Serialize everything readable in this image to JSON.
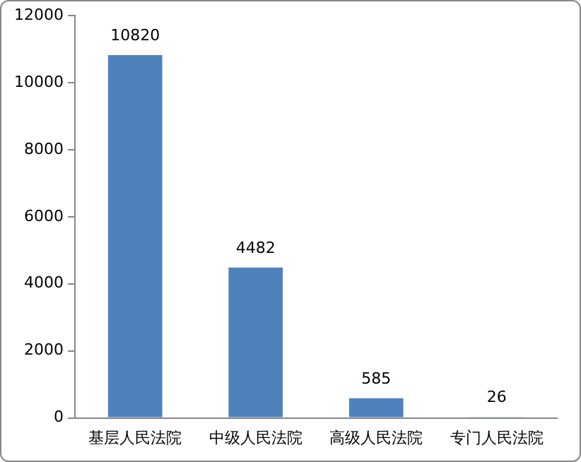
{
  "chart_data": {
    "type": "bar",
    "categories": [
      "基层人民法院",
      "中级人民法院",
      "高级人民法院",
      "专门人民法院"
    ],
    "values": [
      10820,
      4482,
      585,
      26
    ],
    "color": "#4f81bd",
    "ylim": [
      0,
      12000
    ],
    "yticks": [
      0,
      2000,
      4000,
      6000,
      8000,
      10000,
      12000
    ],
    "grid": false,
    "legend": false,
    "data_labels": true
  }
}
